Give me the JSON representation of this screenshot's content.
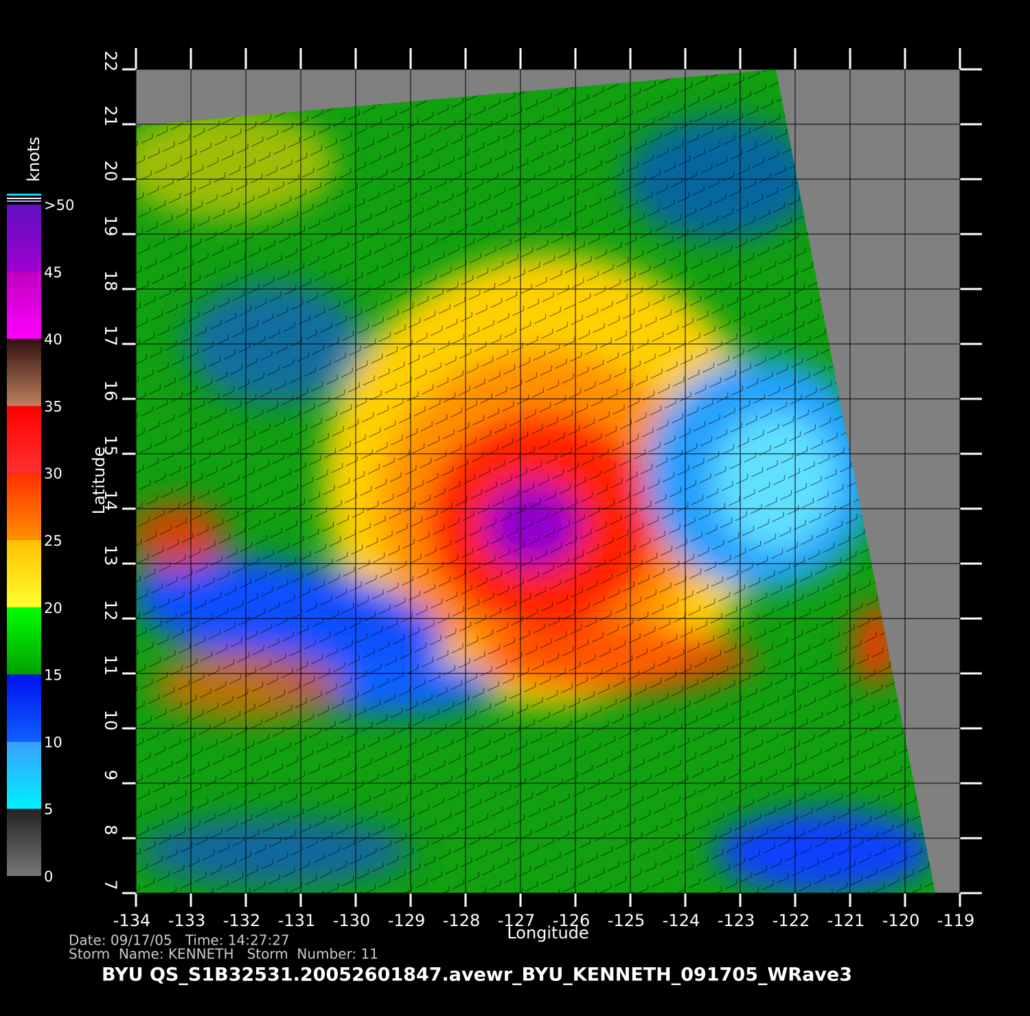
{
  "chart_data": {
    "type": "wind-map",
    "title": "BYU  QS_S1B32531.20052601847.avewr_BYU_KENNETH_091705_WRave3",
    "info": [
      "Date: 09/17/05   Time: 14:27:27",
      "Storm  Name: KENNETH   Storm  Number: 11"
    ],
    "xlabel": "Longitude",
    "ylabel": "Latitude",
    "xlim": [
      -134,
      -119
    ],
    "ylim": [
      7,
      22
    ],
    "xticks": [
      -134,
      -133,
      -132,
      -131,
      -130,
      -129,
      -128,
      -127,
      -126,
      -125,
      -124,
      -123,
      -122,
      -121,
      -120,
      -119
    ],
    "yticks": [
      7,
      8,
      9,
      10,
      11,
      12,
      13,
      14,
      15,
      16,
      17,
      18,
      19,
      20,
      21,
      22
    ],
    "grid": true,
    "colorbar": {
      "label": "knots",
      "ticks": [
        0,
        5,
        10,
        15,
        20,
        25,
        30,
        35,
        40,
        45,
        {
          "value": 50,
          "label": ">50"
        }
      ],
      "colors": [
        [
          "#777777",
          "#222222"
        ],
        [
          "#00f0ff",
          "#3aa0ff"
        ],
        [
          "#1060ff",
          "#0010f0"
        ],
        [
          "#00a000",
          "#00ff00"
        ],
        [
          "#ffff30",
          "#ffc000"
        ],
        [
          "#ff9000",
          "#ff3000"
        ],
        [
          "#ff3030",
          "#ff0000"
        ],
        [
          "#c08060",
          "#301010"
        ],
        [
          "#ff00ff",
          "#c000c0"
        ],
        [
          "#a000d0",
          "#6010c0"
        ]
      ]
    }
  }
}
